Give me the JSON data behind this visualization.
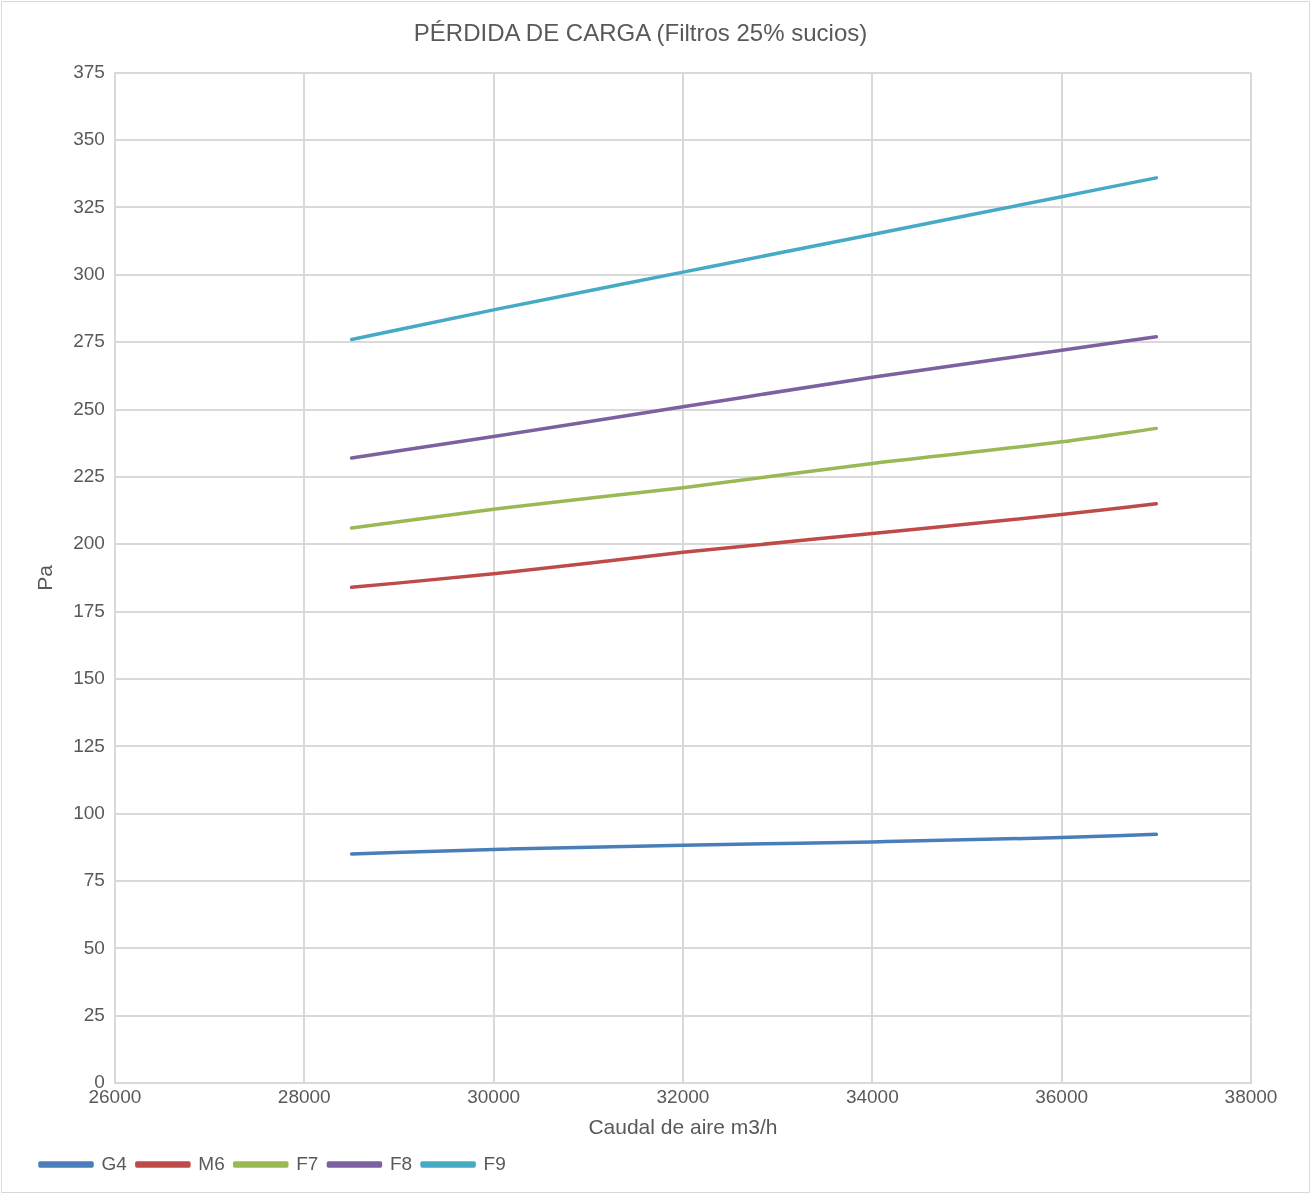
{
  "chart_data": {
    "type": "line",
    "title": "PÉRDIDA DE CARGA (Filtros 25% sucios)",
    "xlabel": "Caudal de aire m3/h",
    "ylabel": "Pa",
    "x": [
      28500,
      30000,
      32000,
      34000,
      36000,
      37000
    ],
    "series": [
      {
        "name": "G4",
        "color": "#4a7ebb",
        "values": [
          85,
          86.7,
          88.3,
          89.5,
          91.1,
          92.3
        ]
      },
      {
        "name": "M6",
        "color": "#be4b48",
        "values": [
          184,
          189,
          197,
          204,
          211,
          215
        ]
      },
      {
        "name": "F7",
        "color": "#98b954",
        "values": [
          206,
          213,
          221,
          230,
          238,
          243
        ]
      },
      {
        "name": "F8",
        "color": "#7d60a0",
        "values": [
          232,
          240,
          251,
          262,
          272,
          277
        ]
      },
      {
        "name": "F9",
        "color": "#46aac5",
        "values": [
          276,
          287,
          301,
          315,
          329,
          336
        ]
      }
    ],
    "xlim": [
      26000,
      38000
    ],
    "xticks": [
      26000,
      28000,
      30000,
      32000,
      34000,
      36000,
      38000
    ],
    "ylim": [
      0,
      375
    ],
    "yticks": [
      0,
      25,
      50,
      75,
      100,
      125,
      150,
      175,
      200,
      225,
      250,
      275,
      300,
      325,
      350,
      375
    ],
    "grid": true,
    "legend": "bottom",
    "marker": "none",
    "line_style": "solid"
  }
}
